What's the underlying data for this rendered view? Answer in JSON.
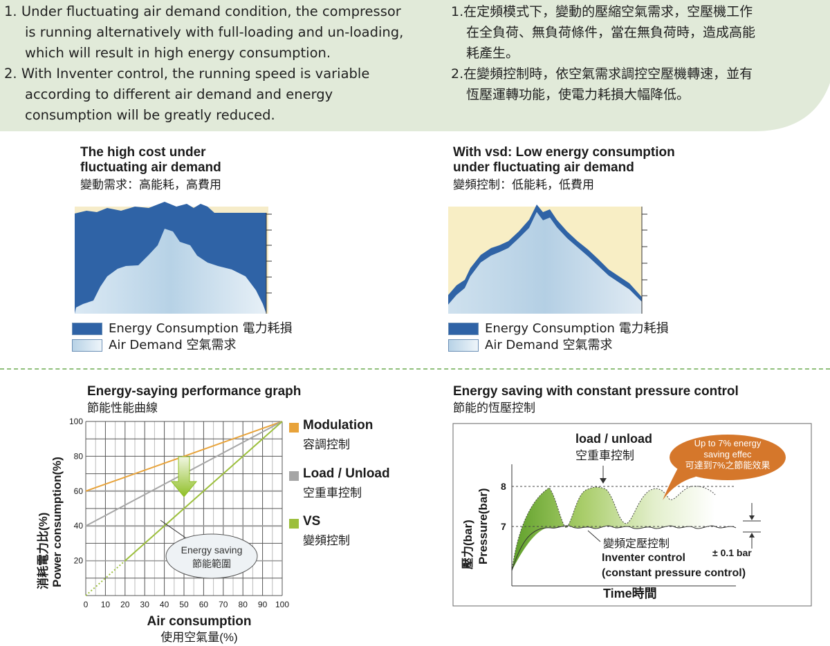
{
  "intro": {
    "en": [
      {
        "num": "1.",
        "lines": [
          "Under fluctuating air demand condition, the compressor",
          "is running alternatively with full-loading and un-loading,",
          "which will result in high energy consumption."
        ]
      },
      {
        "num": "2.",
        "lines": [
          "With Inventer control, the running speed is variable",
          "according to different air demand and energy",
          "consumption will be greatly reduced."
        ]
      }
    ],
    "cn": [
      {
        "num": "1.",
        "lines": [
          "在定頻模式下，變動的壓縮空氣需求，空壓機工作",
          "在全負荷、無負荷條件，當在無負荷時，造成高能",
          "耗產生。"
        ]
      },
      {
        "num": "2.",
        "lines": [
          "在變頻控制時，依空氣需求調控空壓機轉速，並有",
          "恆壓運轉功能，使電力耗損大幅降低。"
        ]
      }
    ]
  },
  "panel_left": {
    "title_line1": "The high cost under",
    "title_line2": "fluctuating air demand",
    "subtitle": "變動需求：高能耗，高費用",
    "legend_energy": "Energy Consumption 電力耗損",
    "legend_air": "Air Demand 空氣需求"
  },
  "panel_right": {
    "title_line1": "With vsd: Low energy consumption",
    "title_line2": "under fluctuating air demand",
    "subtitle": "變頻控制：低能耗，低費用",
    "legend_energy": "Energy Consumption 電力耗損",
    "legend_air": "Air Demand 空氣需求"
  },
  "perf_graph": {
    "title": "Energy-saying performance graph",
    "subtitle": "節能性能曲線",
    "ylabel_cn": "消耗電力比(%)",
    "ylabel_en": "Power consumption(%)",
    "xlabel_en": "Air consumption",
    "xlabel_cn": "使用空氣量(%)",
    "callout_line1": "Energy saving",
    "callout_line2": "節能範圍",
    "legend": [
      {
        "name": "Modulation",
        "cn": "容調控制",
        "color": "#e8a33a"
      },
      {
        "name": "Load / Unload",
        "cn": "空重車控制",
        "color": "#a6a6a6"
      },
      {
        "name": "VS",
        "cn": "變頻控制",
        "color": "#9cbf3c"
      }
    ]
  },
  "chart_data": {
    "type": "line",
    "xlabel": "Air consumption",
    "ylabel": "Power consumption(%)",
    "xlim": [
      0,
      100
    ],
    "ylim": [
      0,
      100
    ],
    "x": [
      0,
      10,
      20,
      30,
      40,
      50,
      60,
      70,
      80,
      90,
      100
    ],
    "series": [
      {
        "name": "Modulation",
        "values": [
          60,
          64,
          68,
          72,
          76,
          80,
          84,
          88,
          92,
          96,
          100
        ]
      },
      {
        "name": "Load / Unload",
        "values": [
          40,
          46,
          52,
          58,
          64,
          70,
          76,
          82,
          88,
          94,
          100
        ]
      },
      {
        "name": "VS",
        "values": [
          0,
          10,
          20,
          30,
          40,
          50,
          60,
          70,
          80,
          90,
          100
        ]
      }
    ]
  },
  "pressure_graph": {
    "title": "Energy saving with constant pressure control",
    "subtitle": "節能的恆壓控制",
    "load_unload_en": "load / unload",
    "load_unload_cn": "空重車控制",
    "bubble_line1": "Up to 7% energy",
    "bubble_line2": "saving effec",
    "bubble_line3": "可達到7%之節能效果",
    "tick_8": "8",
    "tick_7": "7",
    "ylabel_cn": "壓力(bar)",
    "ylabel_en": "Pressure(bar)",
    "inverter_cn": "變頻定壓控制",
    "inverter_en": "Inventer control",
    "inverter_paren": "(constant pressure control)",
    "tolerance": "± 0.1 bar",
    "xlabel": "Time時間"
  }
}
